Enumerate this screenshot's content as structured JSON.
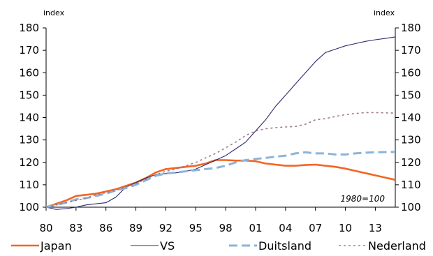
{
  "chart_data": {
    "type": "line",
    "ylabel_left": "index",
    "ylabel_right": "index",
    "annotation": "1980=100",
    "ylim": [
      100,
      180
    ],
    "yticks": [
      100,
      110,
      120,
      130,
      140,
      150,
      160,
      170,
      180
    ],
    "xlim": [
      1980,
      2015
    ],
    "xticks": [
      {
        "value": 1980,
        "label": "80"
      },
      {
        "value": 1983,
        "label": "83"
      },
      {
        "value": 1986,
        "label": "86"
      },
      {
        "value": 1989,
        "label": "89"
      },
      {
        "value": 1992,
        "label": "92"
      },
      {
        "value": 1995,
        "label": "95"
      },
      {
        "value": 1998,
        "label": "98"
      },
      {
        "value": 2001,
        "label": "01"
      },
      {
        "value": 2004,
        "label": "04"
      },
      {
        "value": 2007,
        "label": "07"
      },
      {
        "value": 2010,
        "label": "10"
      },
      {
        "value": 2013,
        "label": "13"
      }
    ],
    "legend_position": "bottom",
    "series": [
      {
        "name": "Japan",
        "color": "#f26522",
        "style": "solid",
        "points": [
          [
            1980,
            100
          ],
          [
            1981,
            101.5
          ],
          [
            1982,
            103
          ],
          [
            1983,
            105
          ],
          [
            1984,
            105.5
          ],
          [
            1985,
            106
          ],
          [
            1986,
            107
          ],
          [
            1987,
            108
          ],
          [
            1988,
            109.5
          ],
          [
            1989,
            111
          ],
          [
            1990,
            113
          ],
          [
            1991,
            115.5
          ],
          [
            1992,
            117
          ],
          [
            1993,
            117.5
          ],
          [
            1994,
            118
          ],
          [
            1995,
            118.5
          ],
          [
            1996,
            119.5
          ],
          [
            1997,
            121
          ],
          [
            1998,
            121
          ],
          [
            1999,
            120.8
          ],
          [
            2000,
            120.8
          ],
          [
            2001,
            120.5
          ],
          [
            2002,
            119.5
          ],
          [
            2003,
            119
          ],
          [
            2004,
            118.5
          ],
          [
            2005,
            118.5
          ],
          [
            2006,
            118.8
          ],
          [
            2007,
            119
          ],
          [
            2008,
            118.5
          ],
          [
            2009,
            118
          ],
          [
            2010,
            117.2
          ],
          [
            2011,
            116.2
          ],
          [
            2012,
            115.2
          ],
          [
            2013,
            114.2
          ],
          [
            2014,
            113.2
          ],
          [
            2015,
            112.2
          ]
        ]
      },
      {
        "name": "VS",
        "color": "#2e2a6e",
        "style": "solid",
        "points": [
          [
            1980,
            100
          ],
          [
            1981,
            99
          ],
          [
            1982,
            99.3
          ],
          [
            1983,
            100
          ],
          [
            1984,
            101
          ],
          [
            1985,
            101.5
          ],
          [
            1986,
            102
          ],
          [
            1987,
            104.5
          ],
          [
            1988,
            109
          ],
          [
            1989,
            111
          ],
          [
            1990,
            113
          ],
          [
            1991,
            114.5
          ],
          [
            1992,
            115
          ],
          [
            1993,
            115.3
          ],
          [
            1994,
            116
          ],
          [
            1995,
            117
          ],
          [
            1996,
            119
          ],
          [
            1997,
            121
          ],
          [
            1998,
            123
          ],
          [
            1999,
            126
          ],
          [
            2000,
            129
          ],
          [
            2001,
            134
          ],
          [
            2002,
            139
          ],
          [
            2003,
            145
          ],
          [
            2004,
            150
          ],
          [
            2005,
            155
          ],
          [
            2006,
            160
          ],
          [
            2007,
            165
          ],
          [
            2008,
            169
          ],
          [
            2009,
            170.5
          ],
          [
            2010,
            172
          ],
          [
            2011,
            173
          ],
          [
            2012,
            174
          ],
          [
            2013,
            174.7
          ],
          [
            2014,
            175.3
          ],
          [
            2015,
            176
          ]
        ]
      },
      {
        "name": "Duitsland",
        "color": "#8cb4d9",
        "style": "dashed",
        "points": [
          [
            1980,
            100
          ],
          [
            1981,
            101
          ],
          [
            1982,
            102
          ],
          [
            1983,
            103.5
          ],
          [
            1984,
            104
          ],
          [
            1985,
            105
          ],
          [
            1986,
            106
          ],
          [
            1987,
            107.5
          ],
          [
            1988,
            108.5
          ],
          [
            1989,
            110
          ],
          [
            1990,
            112
          ],
          [
            1991,
            114
          ],
          [
            1992,
            115
          ],
          [
            1993,
            115.5
          ],
          [
            1994,
            116
          ],
          [
            1995,
            116.5
          ],
          [
            1996,
            117
          ],
          [
            1997,
            117.5
          ],
          [
            1998,
            118.5
          ],
          [
            1999,
            120
          ],
          [
            2000,
            121
          ],
          [
            2001,
            121.5
          ],
          [
            2002,
            122
          ],
          [
            2003,
            122.5
          ],
          [
            2004,
            123
          ],
          [
            2005,
            124
          ],
          [
            2006,
            124.5
          ],
          [
            2007,
            124
          ],
          [
            2008,
            124
          ],
          [
            2009,
            123.5
          ],
          [
            2010,
            123.5
          ],
          [
            2011,
            124
          ],
          [
            2012,
            124.3
          ],
          [
            2013,
            124.5
          ],
          [
            2014,
            124.6
          ],
          [
            2015,
            124.7
          ]
        ]
      },
      {
        "name": "Nederland",
        "color": "#a07890",
        "style": "dotted",
        "points": [
          [
            1980,
            100
          ],
          [
            1981,
            101
          ],
          [
            1982,
            102
          ],
          [
            1983,
            103
          ],
          [
            1984,
            104
          ],
          [
            1985,
            105.5
          ],
          [
            1986,
            106.5
          ],
          [
            1987,
            107.5
          ],
          [
            1988,
            109
          ],
          [
            1989,
            110.5
          ],
          [
            1990,
            112.5
          ],
          [
            1991,
            114.5
          ],
          [
            1992,
            116
          ],
          [
            1993,
            117
          ],
          [
            1994,
            118.5
          ],
          [
            1995,
            120
          ],
          [
            1996,
            122
          ],
          [
            1997,
            124
          ],
          [
            1998,
            126.5
          ],
          [
            1999,
            129
          ],
          [
            2000,
            132
          ],
          [
            2001,
            134
          ],
          [
            2002,
            135
          ],
          [
            2003,
            135.5
          ],
          [
            2004,
            135.8
          ],
          [
            2005,
            136
          ],
          [
            2006,
            137
          ],
          [
            2007,
            139
          ],
          [
            2008,
            139.5
          ],
          [
            2009,
            140.5
          ],
          [
            2010,
            141.3
          ],
          [
            2011,
            141.8
          ],
          [
            2012,
            142.2
          ],
          [
            2013,
            142.2
          ],
          [
            2014,
            142.1
          ],
          [
            2015,
            142
          ]
        ]
      }
    ]
  }
}
